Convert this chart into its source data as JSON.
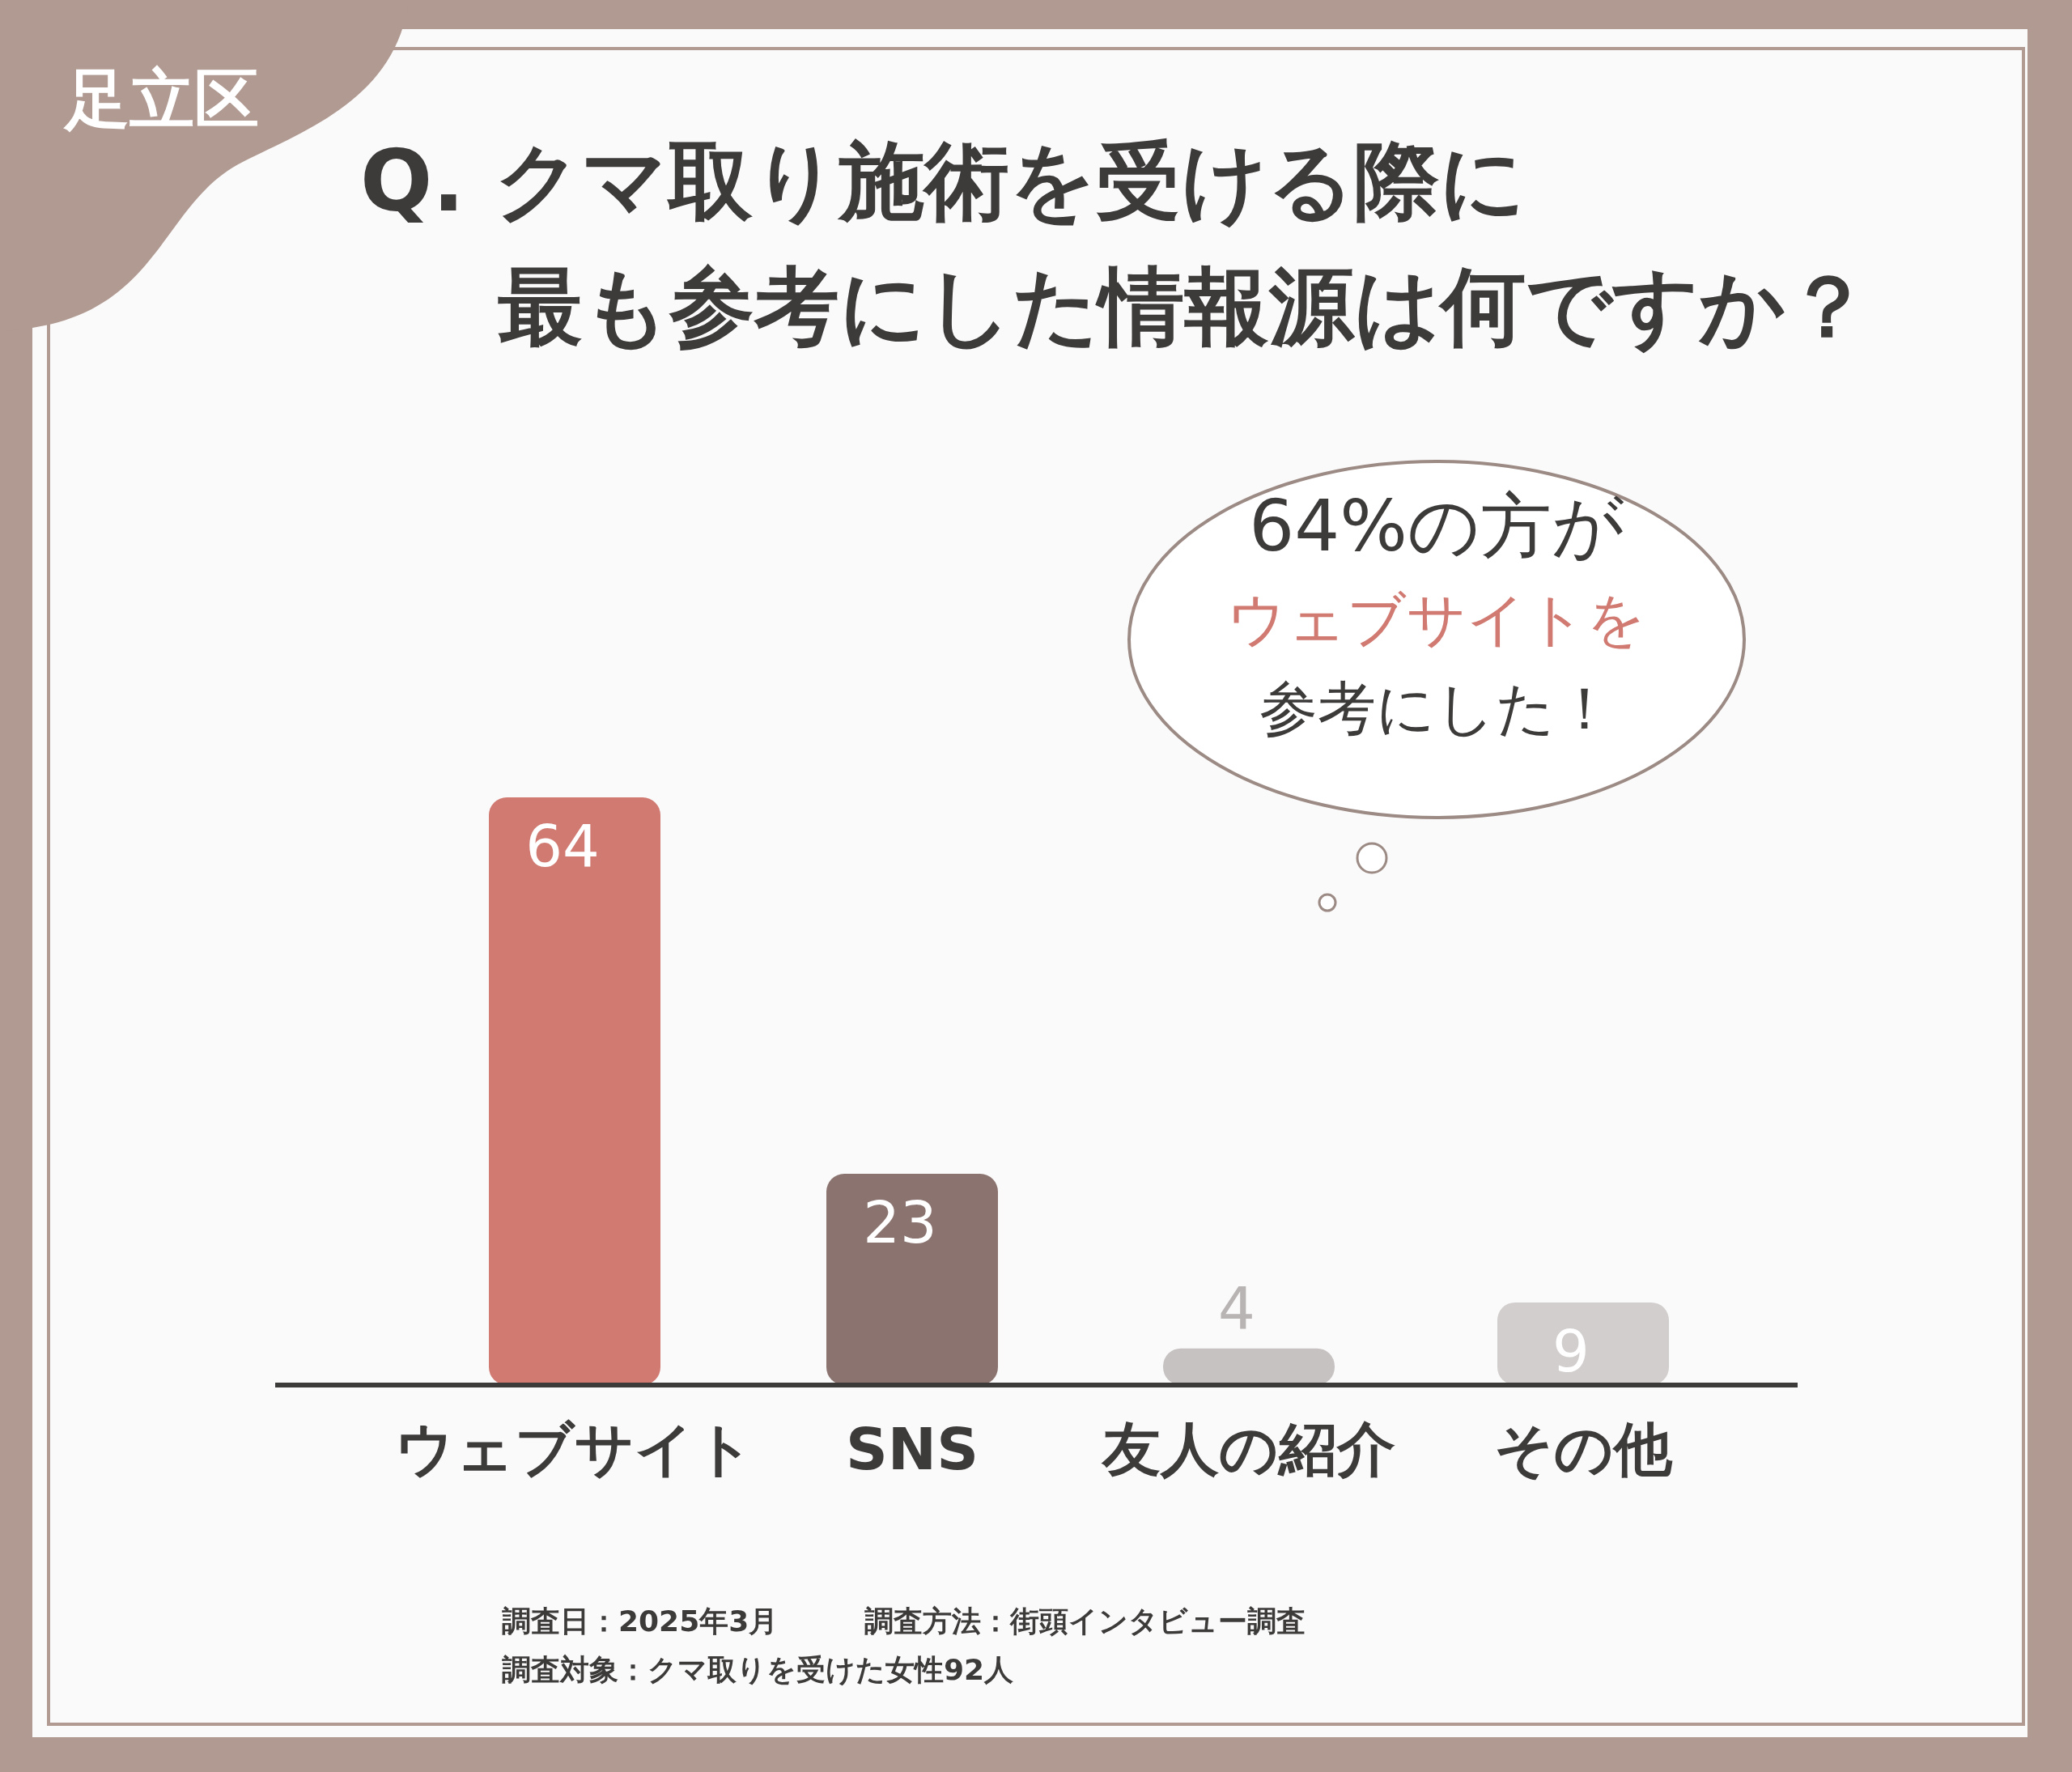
{
  "chart_data": {
    "type": "bar",
    "title": "Q. クマ取り施術を受ける際に最も参考にした情報源は何ですか？",
    "categories": [
      "ウェブサイト",
      "SNS",
      "友人の紹介",
      "その他"
    ],
    "values": [
      64,
      23,
      4,
      9
    ],
    "colors": [
      "#d07a72",
      "#8b7470",
      "#c6c2c1",
      "#d2cecd"
    ],
    "data_labels": true,
    "annotations": [
      "足立区",
      "64%の方が",
      "ウェブサイトを",
      "参考にした！",
      "調査日：2025年3月",
      "調査方法：街頭インタビュー調査",
      "調査対象：クマ取りを受けた女性92人"
    ]
  }
}
